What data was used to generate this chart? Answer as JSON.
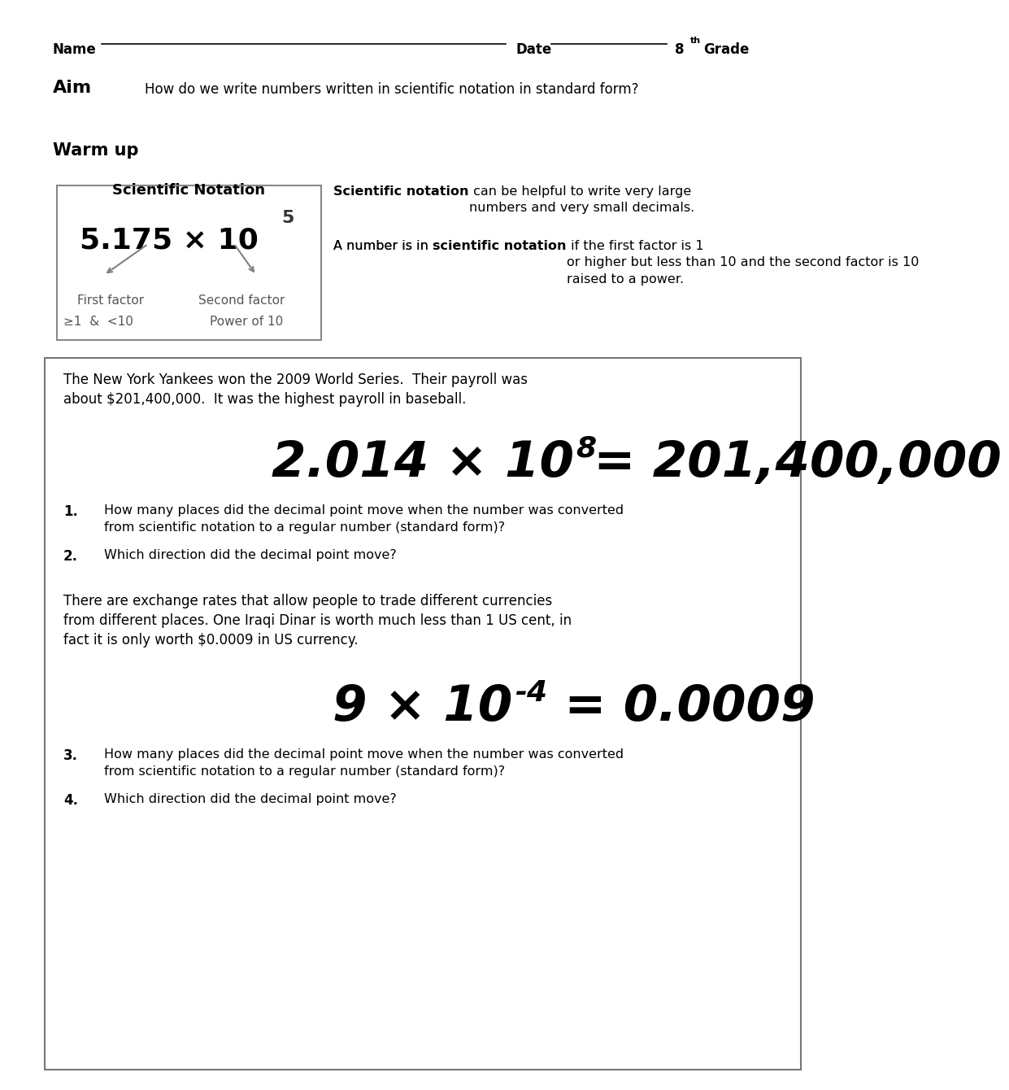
{
  "bg_color": "#ffffff",
  "page_width": 10.2,
  "page_height": 13.2,
  "header_name_label": "Name",
  "header_date_label": "Date",
  "header_grade_label": "8",
  "header_grade_suffix": "th",
  "header_grade_word": "Grade",
  "aim_label": "Aim",
  "aim_text": "How do we write numbers written in scientific notation in standard form?",
  "warmup_label": "Warm up",
  "sci_notation_title": "Scientific Notation",
  "sci_notation_expr": "5.175 × 10",
  "sci_notation_exp": "5",
  "first_factor_label": "First factor",
  "second_factor_label": "Second factor",
  "first_factor_range": "≥1  &  <10",
  "second_factor_range": "Power of 10",
  "sci_note_desc1_bold": "Scientific notation",
  "sci_note_desc1_rest": " can be helpful to write very large\nnumbers and very small decimals.",
  "sci_note_desc2_pre": "A number is in ",
  "sci_note_desc2_bold": "scientific notation",
  "sci_note_desc2_rest": " if the first factor is 1\nor higher but less than 10 and the second factor is 10\nraised to a power.",
  "box1_story_line1": "The New York Yankees won the 2009 World Series.  Their payroll was",
  "box1_story_line2": "about $201,400,000.  It was the highest payroll in baseball.",
  "box1_eq_part1": "2.014 × 10",
  "box1_eq_exp": "8",
  "box1_eq_part2": " = 201,400,000",
  "q1_num": "1.",
  "q1_text": "How many places did the decimal point move when the number was converted\nfrom scientific notation to a regular number (standard form)?",
  "q2_num": "2.",
  "q2_text": "Which direction did the decimal point move?",
  "box2_story_line1": "There are exchange rates that allow people to trade different currencies",
  "box2_story_line2": "from different places. One Iraqi Dinar is worth much less than 1 US cent, in",
  "box2_story_line3": "fact it is only worth $0.0009 in US currency.",
  "box2_eq_part1": "9 × 10",
  "box2_eq_exp": "-4",
  "box2_eq_part2": " = 0.0009",
  "q3_num": "3.",
  "q3_text": "How many places did the decimal point move when the number was converted\nfrom scientific notation to a regular number (standard form)?",
  "q4_num": "4.",
  "q4_text": "Which direction did the decimal point move?"
}
